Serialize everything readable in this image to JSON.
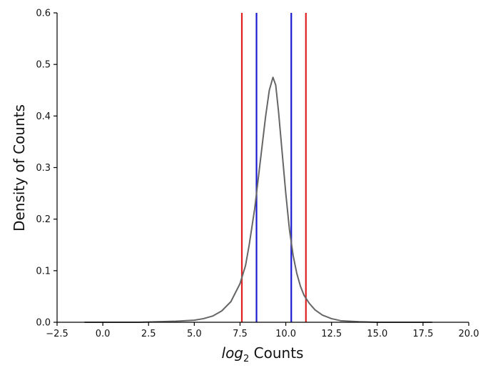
{
  "chart_data": {
    "type": "line",
    "title": "",
    "xlabel_italic": "log",
    "xlabel_sub": "2",
    "xlabel_rest": " Counts",
    "ylabel": "Density of Counts",
    "xlim": [
      -2.5,
      20.0
    ],
    "ylim": [
      0.0,
      0.6
    ],
    "xticks": [
      -2.5,
      0.0,
      2.5,
      5.0,
      7.5,
      10.0,
      12.5,
      15.0,
      17.5,
      20.0
    ],
    "yticks": [
      0.0,
      0.1,
      0.2,
      0.3,
      0.4,
      0.5,
      0.6
    ],
    "xtick_labels": [
      "−2.5",
      "0.0",
      "2.5",
      "5.0",
      "7.5",
      "10.0",
      "12.5",
      "15.0",
      "17.5",
      "20.0"
    ],
    "ytick_labels": [
      "0.0",
      "0.1",
      "0.2",
      "0.3",
      "0.4",
      "0.5",
      "0.6"
    ],
    "grid": false,
    "series": [
      {
        "color": "#666666",
        "x": [
          -1.0,
          0.0,
          1.0,
          2.0,
          3.0,
          4.0,
          5.0,
          5.5,
          6.0,
          6.5,
          7.0,
          7.5,
          7.8,
          8.0,
          8.3,
          8.6,
          8.9,
          9.1,
          9.3,
          9.45,
          9.6,
          9.8,
          10.0,
          10.2,
          10.4,
          10.6,
          10.8,
          11.0,
          11.3,
          11.6,
          12.0,
          12.5,
          13.0,
          14.0,
          15.0,
          16.0,
          17.0,
          18.0
        ],
        "y": [
          0.0,
          0.0,
          0.0,
          0.0,
          0.001,
          0.002,
          0.004,
          0.007,
          0.012,
          0.022,
          0.04,
          0.075,
          0.11,
          0.15,
          0.22,
          0.31,
          0.4,
          0.45,
          0.475,
          0.46,
          0.41,
          0.33,
          0.25,
          0.18,
          0.13,
          0.095,
          0.07,
          0.052,
          0.036,
          0.024,
          0.014,
          0.007,
          0.003,
          0.001,
          0.0,
          0.0,
          0.0,
          0.0
        ]
      }
    ],
    "vlines": [
      {
        "x": 7.6,
        "color": "#e02020"
      },
      {
        "x": 8.4,
        "color": "#1a1ad0"
      },
      {
        "x": 10.3,
        "color": "#1a1ad0"
      },
      {
        "x": 11.1,
        "color": "#e02020"
      }
    ]
  }
}
